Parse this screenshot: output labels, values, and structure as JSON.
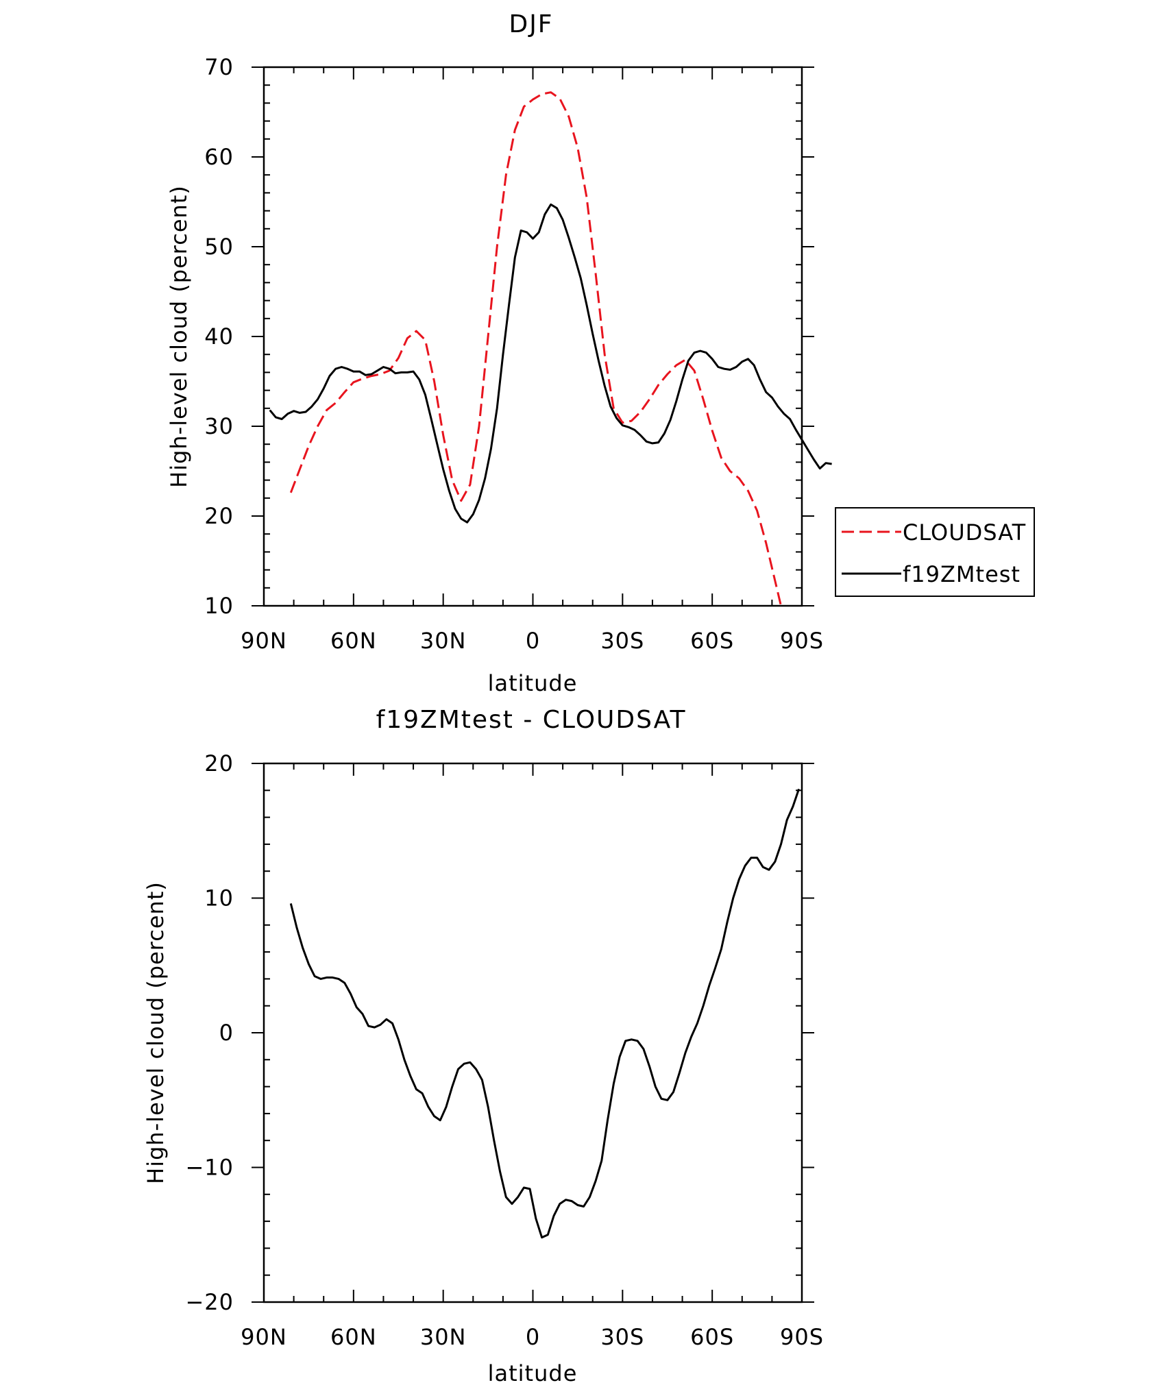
{
  "chart_data": [
    {
      "type": "line",
      "title": "DJF",
      "xlabel": "latitude",
      "ylabel": "High-level cloud (percent)",
      "xlim": [
        90,
        -90
      ],
      "ylim": [
        10,
        70
      ],
      "x_ticks": [
        90,
        60,
        30,
        0,
        -30,
        -60,
        -90
      ],
      "x_tick_labels": [
        "90N",
        "60N",
        "30N",
        "0",
        "30S",
        "60S",
        "90S"
      ],
      "y_ticks": [
        10,
        20,
        30,
        40,
        50,
        60,
        70
      ],
      "y_tick_labels": [
        "10",
        "20",
        "30",
        "40",
        "50",
        "60",
        "70"
      ],
      "legend_position": "right",
      "series": [
        {
          "name": "CLOUDSAT",
          "color": "#e8141e",
          "dash": "dashed",
          "points": [
            [
              81,
              22.6
            ],
            [
              78,
              25.2
            ],
            [
              75,
              27.8
            ],
            [
              72,
              30.0
            ],
            [
              69,
              31.8
            ],
            [
              66,
              32.6
            ],
            [
              63,
              33.8
            ],
            [
              60,
              34.9
            ],
            [
              57,
              35.3
            ],
            [
              54,
              35.6
            ],
            [
              51,
              35.8
            ],
            [
              48,
              36.2
            ],
            [
              45,
              37.6
            ],
            [
              42,
              39.8
            ],
            [
              39,
              40.6
            ],
            [
              36,
              39.6
            ],
            [
              33,
              35.0
            ],
            [
              30,
              29.0
            ],
            [
              27,
              24.0
            ],
            [
              24,
              21.7
            ],
            [
              21,
              23.5
            ],
            [
              18,
              30.0
            ],
            [
              15,
              40.0
            ],
            [
              12,
              50.0
            ],
            [
              9,
              58.0
            ],
            [
              6,
              63.0
            ],
            [
              3,
              65.6
            ],
            [
              0,
              66.4
            ],
            [
              -3,
              67.0
            ],
            [
              -6,
              67.2
            ],
            [
              -9,
              66.5
            ],
            [
              -12,
              64.5
            ],
            [
              -15,
              61.0
            ],
            [
              -18,
              55.5
            ],
            [
              -21,
              47.0
            ],
            [
              -24,
              38.0
            ],
            [
              -27,
              32.0
            ],
            [
              -30,
              30.4
            ],
            [
              -33,
              30.6
            ],
            [
              -36,
              31.6
            ],
            [
              -39,
              33.0
            ],
            [
              -42,
              34.6
            ],
            [
              -45,
              35.8
            ],
            [
              -48,
              36.8
            ],
            [
              -51,
              37.4
            ],
            [
              -54,
              36.2
            ],
            [
              -57,
              33.0
            ],
            [
              -60,
              29.5
            ],
            [
              -63,
              26.5
            ],
            [
              -66,
              25.0
            ],
            [
              -69,
              24.2
            ],
            [
              -72,
              22.8
            ],
            [
              -75,
              20.6
            ],
            [
              -78,
              17.0
            ],
            [
              -81,
              12.8
            ],
            [
              -83,
              10.0
            ]
          ]
        },
        {
          "name": "f19ZMtest",
          "color": "#000000",
          "dash": "solid",
          "points": [
            [
              88,
              31.8
            ],
            [
              86,
              31.0
            ],
            [
              84,
              30.8
            ],
            [
              82,
              31.4
            ],
            [
              80,
              31.7
            ],
            [
              78,
              31.5
            ],
            [
              76,
              31.6
            ],
            [
              74,
              32.2
            ],
            [
              72,
              33.0
            ],
            [
              70,
              34.2
            ],
            [
              68,
              35.6
            ],
            [
              66,
              36.4
            ],
            [
              64,
              36.6
            ],
            [
              62,
              36.4
            ],
            [
              60,
              36.1
            ],
            [
              58,
              36.1
            ],
            [
              56,
              35.7
            ],
            [
              54,
              35.8
            ],
            [
              52,
              36.2
            ],
            [
              50,
              36.6
            ],
            [
              48,
              36.4
            ],
            [
              46,
              35.9
            ],
            [
              44,
              36.0
            ],
            [
              42,
              36.0
            ],
            [
              40,
              36.1
            ],
            [
              38,
              35.2
            ],
            [
              36,
              33.5
            ],
            [
              34,
              30.8
            ],
            [
              32,
              28.0
            ],
            [
              30,
              25.2
            ],
            [
              28,
              22.8
            ],
            [
              26,
              20.8
            ],
            [
              24,
              19.7
            ],
            [
              22,
              19.3
            ],
            [
              20,
              20.2
            ],
            [
              18,
              21.8
            ],
            [
              16,
              24.2
            ],
            [
              14,
              27.5
            ],
            [
              12,
              32.0
            ],
            [
              10,
              38.0
            ],
            [
              8,
              43.5
            ],
            [
              6,
              48.8
            ],
            [
              4,
              51.8
            ],
            [
              2,
              51.6
            ],
            [
              0,
              50.9
            ],
            [
              -2,
              51.6
            ],
            [
              -4,
              53.6
            ],
            [
              -6,
              54.7
            ],
            [
              -8,
              54.3
            ],
            [
              -10,
              53.0
            ],
            [
              -12,
              51.0
            ],
            [
              -14,
              48.8
            ],
            [
              -16,
              46.5
            ],
            [
              -18,
              43.5
            ],
            [
              -20,
              40.3
            ],
            [
              -22,
              37.3
            ],
            [
              -24,
              34.5
            ],
            [
              -26,
              32.2
            ],
            [
              -28,
              30.9
            ],
            [
              -30,
              30.1
            ],
            [
              -32,
              29.9
            ],
            [
              -34,
              29.6
            ],
            [
              -36,
              29.0
            ],
            [
              -38,
              28.3
            ],
            [
              -40,
              28.1
            ],
            [
              -42,
              28.2
            ],
            [
              -44,
              29.2
            ],
            [
              -46,
              30.7
            ],
            [
              -48,
              32.8
            ],
            [
              -50,
              35.2
            ],
            [
              -52,
              37.3
            ],
            [
              -54,
              38.2
            ],
            [
              -56,
              38.4
            ],
            [
              -58,
              38.2
            ],
            [
              -60,
              37.5
            ],
            [
              -62,
              36.6
            ],
            [
              -64,
              36.4
            ],
            [
              -66,
              36.3
            ],
            [
              -68,
              36.6
            ],
            [
              -70,
              37.2
            ],
            [
              -72,
              37.5
            ],
            [
              -74,
              36.8
            ],
            [
              -76,
              35.2
            ],
            [
              -78,
              33.8
            ],
            [
              -80,
              33.2
            ],
            [
              -82,
              32.2
            ],
            [
              -84,
              31.4
            ],
            [
              -86,
              30.8
            ],
            [
              -88,
              29.6
            ],
            [
              -90,
              28.5
            ],
            [
              -92,
              27.4
            ],
            [
              -94,
              26.3
            ],
            [
              -96,
              25.3
            ],
            [
              -98,
              25.9
            ],
            [
              -100,
              25.8
            ]
          ]
        }
      ]
    },
    {
      "type": "line",
      "title": "f19ZMtest - CLOUDSAT",
      "xlabel": "latitude",
      "ylabel": "High-level cloud (percent)",
      "xlim": [
        90,
        -90
      ],
      "ylim": [
        -20,
        20
      ],
      "x_ticks": [
        90,
        60,
        30,
        0,
        -30,
        -60,
        -90
      ],
      "x_tick_labels": [
        "90N",
        "60N",
        "30N",
        "0",
        "30S",
        "60S",
        "90S"
      ],
      "y_ticks": [
        -20,
        -10,
        0,
        10,
        20
      ],
      "y_tick_labels": [
        "−20",
        "−10",
        "0",
        "10",
        "20"
      ],
      "series": [
        {
          "color": "#000000",
          "dash": "solid",
          "points": [
            [
              81,
              9.6
            ],
            [
              79,
              7.8
            ],
            [
              77,
              6.3
            ],
            [
              75,
              5.1
            ],
            [
              73,
              4.2
            ],
            [
              71,
              4.0
            ],
            [
              69,
              4.1
            ],
            [
              67,
              4.1
            ],
            [
              65,
              4.0
            ],
            [
              63,
              3.7
            ],
            [
              61,
              2.9
            ],
            [
              59,
              1.9
            ],
            [
              57,
              1.4
            ],
            [
              55,
              0.5
            ],
            [
              53,
              0.4
            ],
            [
              51,
              0.6
            ],
            [
              49,
              1.0
            ],
            [
              47,
              0.7
            ],
            [
              45,
              -0.5
            ],
            [
              43,
              -2.0
            ],
            [
              41,
              -3.2
            ],
            [
              39,
              -4.2
            ],
            [
              37,
              -4.5
            ],
            [
              35,
              -5.5
            ],
            [
              33,
              -6.2
            ],
            [
              31,
              -6.5
            ],
            [
              29,
              -5.5
            ],
            [
              27,
              -4.0
            ],
            [
              25,
              -2.7
            ],
            [
              23,
              -2.3
            ],
            [
              21,
              -2.2
            ],
            [
              19,
              -2.7
            ],
            [
              17,
              -3.5
            ],
            [
              15,
              -5.5
            ],
            [
              13,
              -8.0
            ],
            [
              11,
              -10.3
            ],
            [
              9,
              -12.2
            ],
            [
              7,
              -12.7
            ],
            [
              5,
              -12.2
            ],
            [
              3,
              -11.5
            ],
            [
              1,
              -11.6
            ],
            [
              -1,
              -13.8
            ],
            [
              -3,
              -15.2
            ],
            [
              -5,
              -15.0
            ],
            [
              -7,
              -13.6
            ],
            [
              -9,
              -12.7
            ],
            [
              -11,
              -12.4
            ],
            [
              -13,
              -12.5
            ],
            [
              -15,
              -12.8
            ],
            [
              -17,
              -12.9
            ],
            [
              -19,
              -12.2
            ],
            [
              -21,
              -11.0
            ],
            [
              -23,
              -9.5
            ],
            [
              -25,
              -6.5
            ],
            [
              -27,
              -3.8
            ],
            [
              -29,
              -1.8
            ],
            [
              -31,
              -0.6
            ],
            [
              -33,
              -0.5
            ],
            [
              -35,
              -0.6
            ],
            [
              -37,
              -1.2
            ],
            [
              -39,
              -2.5
            ],
            [
              -41,
              -4.0
            ],
            [
              -43,
              -4.9
            ],
            [
              -45,
              -5.0
            ],
            [
              -47,
              -4.4
            ],
            [
              -49,
              -3.0
            ],
            [
              -51,
              -1.5
            ],
            [
              -53,
              -0.3
            ],
            [
              -55,
              0.7
            ],
            [
              -57,
              2.0
            ],
            [
              -59,
              3.5
            ],
            [
              -61,
              4.8
            ],
            [
              -63,
              6.2
            ],
            [
              -65,
              8.2
            ],
            [
              -67,
              10.0
            ],
            [
              -69,
              11.4
            ],
            [
              -71,
              12.4
            ],
            [
              -73,
              13.0
            ],
            [
              -75,
              13.0
            ],
            [
              -77,
              12.3
            ],
            [
              -79,
              12.1
            ],
            [
              -81,
              12.7
            ],
            [
              -83,
              14.0
            ],
            [
              -85,
              15.8
            ],
            [
              -87,
              16.8
            ],
            [
              -89,
              18.1
            ]
          ]
        }
      ]
    }
  ]
}
